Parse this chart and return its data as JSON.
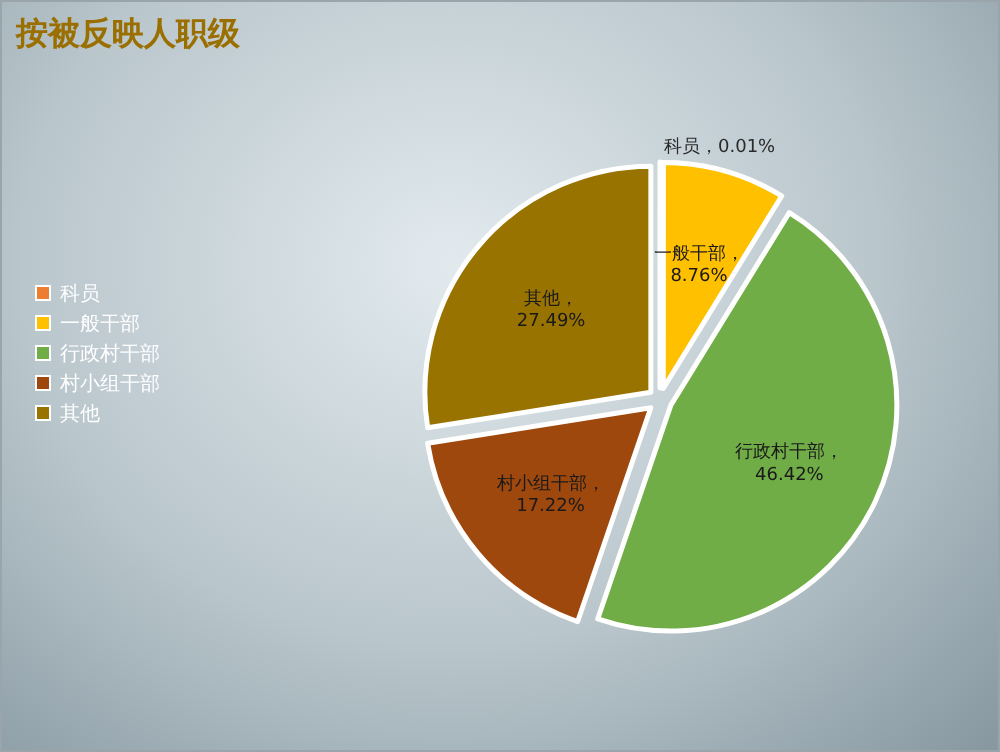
{
  "chart_data": {
    "type": "pie",
    "title": "按被反映人职级",
    "categories": [
      "科员",
      "一般干部",
      "行政村干部",
      "村小组干部",
      "其他"
    ],
    "values": [
      0.01,
      8.76,
      46.42,
      17.22,
      27.49
    ],
    "value_labels": [
      "科员，0.01%",
      "一般干部，8.76%",
      "行政村干部，46.42%",
      "村小组干部，17.22%",
      "其他，27.49%"
    ],
    "colors": [
      "#ed7d31",
      "#ffc000",
      "#70ad47",
      "#9e480e",
      "#997300"
    ],
    "legend": "left"
  }
}
